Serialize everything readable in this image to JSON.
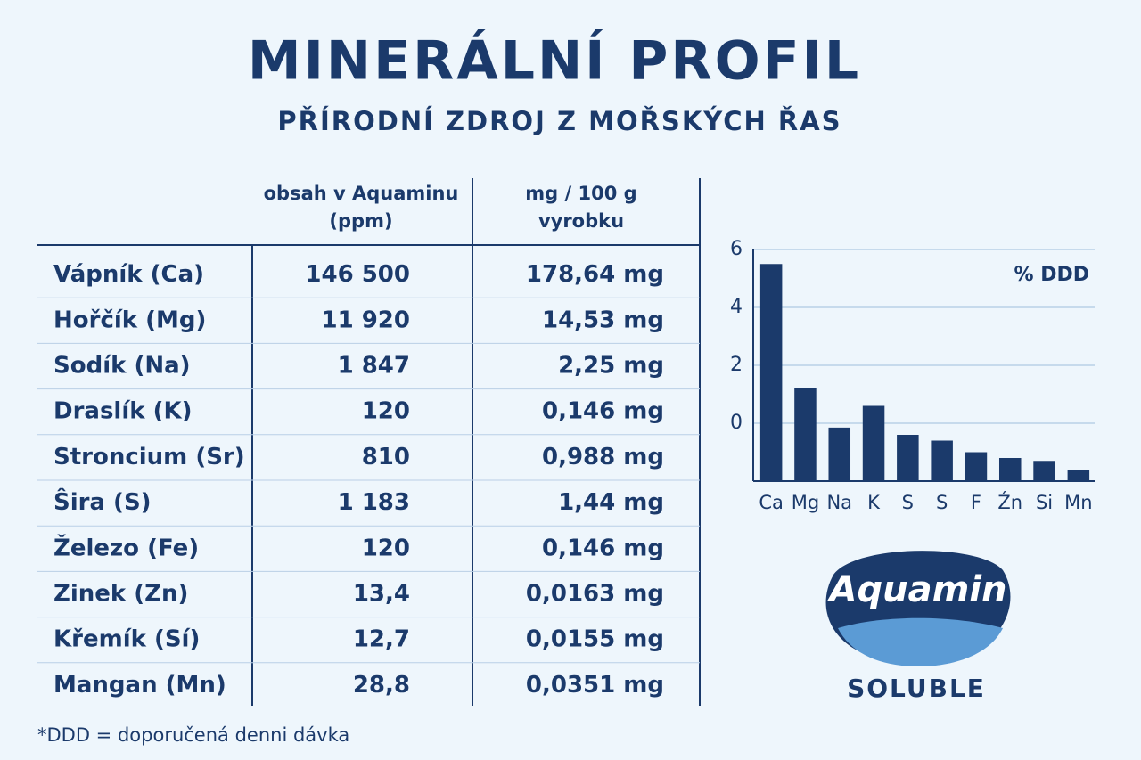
{
  "header": {
    "title": "MINERÁLNÍ PROFIL",
    "subtitle": "PŘÍRODNÍ ZDROJ Z MOŘSKÝCH ŘAS"
  },
  "table": {
    "columns": [
      [
        "obsah v Aquaminu",
        "(ppm)"
      ],
      [
        "mg / 100 g",
        "vyrobku"
      ]
    ],
    "rows": [
      [
        "Vápník (Ca)",
        "146 500",
        "178,64 mg"
      ],
      [
        "Hořčík (Mg)",
        "11 920",
        "14,53 mg"
      ],
      [
        "Sodík (Na)",
        "1 847",
        "2,25 mg"
      ],
      [
        "Draslík (K)",
        "120",
        "0,146 mg"
      ],
      [
        "Stroncium (Sr)",
        "810",
        "0,988 mg"
      ],
      [
        "Ŝira (S)",
        "1 183",
        "1,44 mg"
      ],
      [
        "Železo (Fe)",
        "120",
        "0,146 mg"
      ],
      [
        "Zinek (Zn)",
        "13,4",
        "0,0163 mg"
      ],
      [
        "Křemík (Sí)",
        "12,7",
        "0,0155 mg"
      ],
      [
        "Mangan (Mn)",
        "28,8",
        "0,0351 mg"
      ]
    ]
  },
  "chart_data": {
    "type": "bar",
    "annotation": "% DDD",
    "categories": [
      "Ca",
      "Mg",
      "Na",
      "K",
      "S",
      "S",
      "F",
      "Źn",
      "Si",
      "Mn"
    ],
    "values": [
      5.5,
      1.2,
      -0.15,
      0.6,
      -0.4,
      -0.6,
      -1.0,
      -1.2,
      -1.3,
      -1.6
    ],
    "color": "#1b3a6b",
    "ylim": [
      -2,
      6
    ],
    "yticks": [
      0,
      2,
      4,
      6
    ],
    "grid": true
  },
  "logo": {
    "name": "Aquamin",
    "tagline": "SOLUBLE"
  },
  "footnote": "*DDD = doporučená denni dávka"
}
